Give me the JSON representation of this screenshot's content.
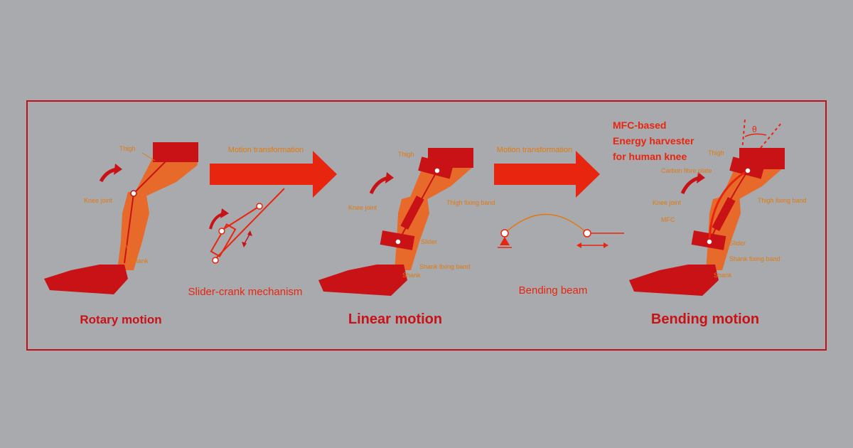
{
  "colors": {
    "background": "#a9aaae",
    "frame": "#c0111b",
    "primary_red": "#e8250f",
    "dark_red": "#c81216",
    "orange_label": "#e07a10",
    "skin": "#e86a2a"
  },
  "stage1": {
    "thigh_label": "Thigh",
    "knee_label": "Knee joint",
    "shank_label": "Shank",
    "caption": "Rotary motion"
  },
  "transform1": {
    "label": "Motion transformation",
    "mechanism_caption": "Slider-crank mechanism"
  },
  "stage2": {
    "thigh_label": "Thigh",
    "knee_label": "Knee joint",
    "thigh_band_label": "Thigh fixing band",
    "slider_label": "Slider",
    "shank_band_label": "Shank fixing band",
    "shank_label": "Shank",
    "caption": "Linear motion"
  },
  "transform2": {
    "label": "Motion transformation",
    "beam_caption": "Bending beam"
  },
  "stage3": {
    "title_line1": "MFC-based",
    "title_line2": "Energy harvester",
    "title_line3": "for human knee",
    "theta_label": "θ",
    "thigh_label": "Thigh",
    "carbon_label": "Carbon fibre plate",
    "knee_label": "Knee joint",
    "thigh_band_label": "Thigh fixing band",
    "mfc_label": "MFC",
    "slider_label": "Slider",
    "shank_band_label": "Shank fixing band",
    "shank_label": "Shank",
    "caption": "Bending motion"
  }
}
